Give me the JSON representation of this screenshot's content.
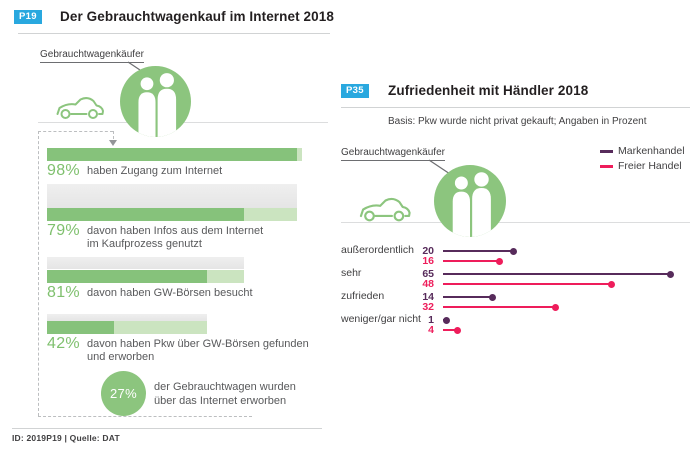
{
  "colors": {
    "badge_blue": "#29A8DF",
    "green_dark": "#86C27B",
    "green_light": "#CBE4C0",
    "green_text": "#7FC06E",
    "green_circle": "#8CC57E",
    "purple": "#572B5B",
    "pink": "#EE1D5B",
    "transition_top": "#EFEFEF",
    "transition_bottom": "#E5E5E5"
  },
  "left_panel": {
    "badge": "P19",
    "title": "Der Gebrauchtwagenkauf im Internet 2018",
    "buyer_label": "Gebrauchtwagenkäufer",
    "footer": "ID: 2019P19 | Quelle: DAT"
  },
  "right_panel": {
    "badge": "P35",
    "title": "Zufriedenheit mit Händler 2018",
    "subtitle": "Basis: Pkw wurde nicht privat gekauft; Angaben in Prozent",
    "buyer_label": "Gebrauchtwagenkäufer"
  },
  "chart_data": [
    {
      "type": "bar",
      "style": "funnel",
      "title": "Der Gebrauchtwagenkauf im Internet 2018",
      "unit": "percent",
      "steps": [
        {
          "value": 98,
          "suffix": "%",
          "label_lines": [
            "haben Zugang zum Internet"
          ]
        },
        {
          "value": 79,
          "suffix": "%",
          "label_lines": [
            "davon haben Infos aus dem Internet",
            "im Kaufprozess genutzt"
          ]
        },
        {
          "value": 81,
          "suffix": "%",
          "label_lines": [
            "davon haben GW-Börsen besucht"
          ]
        },
        {
          "value": 42,
          "suffix": "%",
          "label_lines": [
            "davon haben Pkw über GW-Börsen gefunden",
            "und erworben"
          ]
        }
      ],
      "callout": {
        "value": 27,
        "suffix": "%",
        "label_lines": [
          "der Gebrauchtwagen wurden",
          "über das Internet erworben"
        ]
      }
    },
    {
      "type": "bar",
      "style": "lollipop",
      "title": "Zufriedenheit mit Händler 2018",
      "basis": "Basis: Pkw wurde nicht privat gekauft; Angaben in Prozent",
      "categories": [
        "außerordentlich",
        "sehr",
        "zufrieden",
        "weniger/gar nicht"
      ],
      "series": [
        {
          "name": "Markenhandel",
          "color": "#572B5B",
          "values": [
            20,
            65,
            14,
            1
          ]
        },
        {
          "name": "Freier Handel",
          "color": "#EE1D5B",
          "values": [
            16,
            48,
            32,
            4
          ]
        }
      ],
      "xlim": [
        0,
        68
      ],
      "unit": "percent",
      "legend_position": "top-right"
    }
  ]
}
